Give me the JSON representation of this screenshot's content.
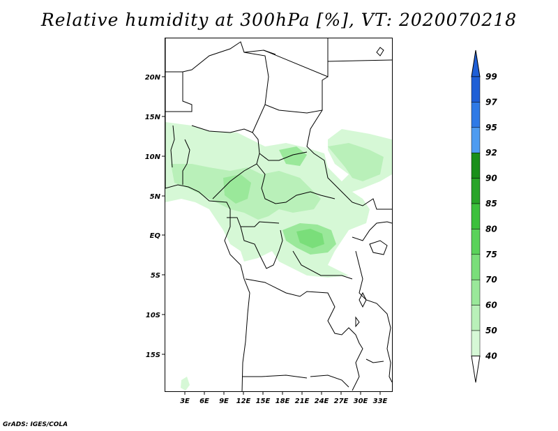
{
  "title": "Relative humidity at 300hPa [%], VT: 2020070218",
  "credit": "GrADS: IGES/COLA",
  "map": {
    "lat_labels": [
      "20N",
      "15N",
      "10N",
      "5N",
      "EQ",
      "5S",
      "10S",
      "15S"
    ],
    "lon_labels": [
      "3E",
      "6E",
      "9E",
      "12E",
      "15E",
      "18E",
      "21E",
      "24E",
      "27E",
      "30E",
      "33E"
    ]
  },
  "colorbar": {
    "levels": [
      "99",
      "97",
      "95",
      "92",
      "90",
      "85",
      "80",
      "75",
      "70",
      "60",
      "50",
      "40"
    ],
    "colors": [
      "#1f5fd6",
      "#2f7ae6",
      "#4f9cf0",
      "#1a8f1a",
      "#28a428",
      "#3cc03c",
      "#5ad25a",
      "#7ade7a",
      "#9ae89a",
      "#b9f0b9",
      "#d6f8d6",
      "#ecfdec"
    ],
    "over_color": "#1f5fd6",
    "under_color": "#ffffff"
  }
}
